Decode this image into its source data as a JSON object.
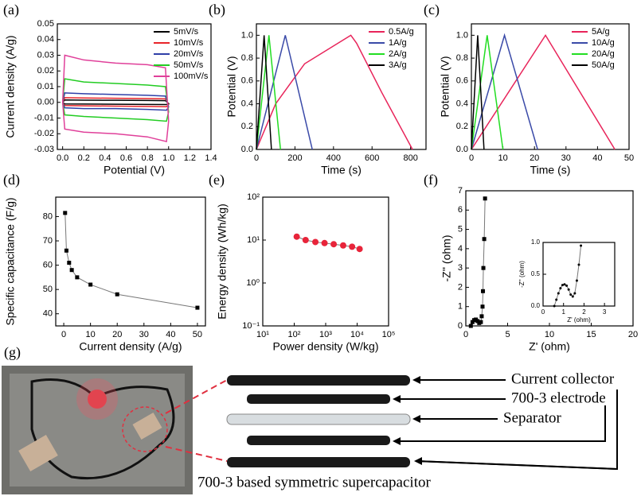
{
  "chart_data": [
    {
      "type": "line",
      "panel_label": "(a)",
      "x_label": "Potential (V)",
      "y_label": "Current density (A/g)",
      "xlim": [
        -0.05,
        1.4
      ],
      "ylim": [
        -0.03,
        0.05
      ],
      "xticks": [
        {
          "value": 0,
          "label": "0.0"
        },
        0.2,
        0.4,
        0.6,
        0.8,
        {
          "value": 1,
          "label": "1.0"
        },
        1.2,
        1.4
      ],
      "yticks": [
        -0.03,
        -0.02,
        -0.01,
        {
          "value": 0,
          "label": "0.00"
        },
        0.01,
        0.02,
        0.03,
        0.04,
        0.05
      ],
      "legend": true,
      "x": [
        0.0,
        0.02,
        0.2,
        0.5,
        0.8,
        0.97,
        1.0,
        0.98,
        0.8,
        0.5,
        0.2,
        0.02,
        0.0
      ],
      "series": [
        {
          "name": "5mV/s",
          "color": "#000000",
          "values": [
            0,
            0.0015,
            0.0014,
            0.0013,
            0.0012,
            0.0011,
            -0.0008,
            -0.0014,
            -0.0013,
            -0.0012,
            -0.0011,
            -0.001,
            0
          ]
        },
        {
          "name": "10mV/s",
          "color": "#e8242a",
          "values": [
            0,
            0.003,
            0.0028,
            0.0026,
            0.0024,
            0.0022,
            -0.0015,
            -0.0028,
            -0.0026,
            -0.0024,
            -0.0022,
            -0.002,
            0
          ]
        },
        {
          "name": "20mV/s",
          "color": "#2f3fa8",
          "values": [
            0,
            0.006,
            0.0055,
            0.005,
            0.0045,
            0.004,
            -0.003,
            -0.005,
            -0.0045,
            -0.004,
            -0.004,
            -0.0035,
            0
          ]
        },
        {
          "name": "50mV/s",
          "color": "#22cc22",
          "values": [
            0,
            0.015,
            0.013,
            0.012,
            0.011,
            0.01,
            -0.006,
            -0.012,
            -0.011,
            -0.01,
            -0.009,
            -0.008,
            0
          ]
        },
        {
          "name": "100mV/s",
          "color": "#e0409a",
          "values": [
            0,
            0.03,
            0.027,
            0.025,
            0.024,
            0.022,
            -0.012,
            -0.025,
            -0.022,
            -0.02,
            -0.019,
            -0.017,
            0
          ]
        }
      ]
    },
    {
      "type": "line",
      "panel_label": "(b)",
      "x_label": "Time (s)",
      "y_label": "Potential (V)",
      "xlim": [
        0,
        880
      ],
      "ylim": [
        0,
        1.1
      ],
      "xticks": [
        0,
        200,
        400,
        600,
        800
      ],
      "yticks": [
        {
          "value": 0,
          "label": "0.0"
        },
        0.2,
        0.4,
        0.6,
        0.8,
        {
          "value": 1,
          "label": "1.0"
        }
      ],
      "legend": true,
      "series": [
        {
          "name": "0.5A/g",
          "color": "#e8245a",
          "x": [
            0,
            100,
            250,
            490,
            520,
            650,
            810
          ],
          "values": [
            0,
            0.4,
            0.75,
            1,
            0.93,
            0.5,
            0
          ]
        },
        {
          "name": "1A/g",
          "color": "#3a4aa8",
          "x": [
            0,
            150,
            290
          ],
          "values": [
            0,
            1,
            0
          ]
        },
        {
          "name": "2A/g",
          "color": "#22dd22",
          "x": [
            0,
            65,
            125
          ],
          "values": [
            0,
            1,
            0
          ]
        },
        {
          "name": "3A/g",
          "color": "#000000",
          "x": [
            0,
            40,
            78
          ],
          "values": [
            0,
            1,
            0
          ]
        }
      ]
    },
    {
      "type": "line",
      "panel_label": "(c)",
      "x_label": "Time (s)",
      "y_label": "Potential (V)",
      "xlim": [
        0,
        50
      ],
      "ylim": [
        0,
        1.1
      ],
      "xticks": [
        0,
        10,
        20,
        30,
        40,
        50
      ],
      "yticks": [
        {
          "value": 0,
          "label": "0.0"
        },
        0.2,
        0.4,
        0.6,
        0.8,
        {
          "value": 1,
          "label": "1.0"
        }
      ],
      "legend": true,
      "series": [
        {
          "name": "5A/g",
          "color": "#e8245a",
          "x": [
            0,
            23.5,
            45.5
          ],
          "values": [
            0,
            1,
            0
          ]
        },
        {
          "name": "10A/g",
          "color": "#3a4aa8",
          "x": [
            0,
            10.5,
            21
          ],
          "values": [
            0,
            1,
            0
          ]
        },
        {
          "name": "20A/g",
          "color": "#22dd22",
          "x": [
            0,
            5,
            10
          ],
          "values": [
            0,
            1,
            0
          ]
        },
        {
          "name": "50A/g",
          "color": "#000000",
          "x": [
            0,
            2,
            4
          ],
          "values": [
            0,
            1,
            0
          ]
        }
      ]
    },
    {
      "type": "line",
      "panel_label": "(d)",
      "x_label": "Current density (A/g)",
      "y_label": "Specific capacitance (F/g)",
      "xlim": [
        -3,
        53
      ],
      "ylim": [
        35,
        88
      ],
      "xticks": [
        0,
        10,
        20,
        30,
        40,
        50
      ],
      "yticks": [
        40,
        50,
        60,
        70,
        80
      ],
      "x": [
        0.5,
        1,
        2,
        3,
        5,
        10,
        20,
        50
      ],
      "series": [
        {
          "color": "#000000",
          "marker": "square",
          "values": [
            81.5,
            66,
            61,
            58,
            55,
            52,
            48,
            42.5
          ]
        }
      ]
    },
    {
      "type": "line",
      "panel_label": "(e)",
      "x_label": "Power density (W/kg)",
      "y_label": "Energy density (Wh/kg)",
      "xscale": "log",
      "yscale": "log",
      "xlim": [
        10,
        100000
      ],
      "ylim": [
        0.1,
        100
      ],
      "xticks": [
        {
          "value": 10,
          "label": "10¹"
        },
        {
          "value": 100,
          "label": "10²"
        },
        {
          "value": 1000,
          "label": "10³"
        },
        {
          "value": 10000,
          "label": "10⁴"
        },
        {
          "value": 100000,
          "label": "10⁵"
        }
      ],
      "yticks": [
        {
          "value": 0.1,
          "label": "10⁻¹"
        },
        {
          "value": 1,
          "label": "10⁰"
        },
        {
          "value": 10,
          "label": "10¹"
        },
        {
          "value": 100,
          "label": "10²"
        }
      ],
      "x": [
        120,
        230,
        470,
        920,
        1800,
        3600,
        6900,
        12000
      ],
      "series": [
        {
          "color": "#e8243a",
          "marker": "circle",
          "values": [
            12,
            10,
            9,
            8.5,
            8,
            7.5,
            7,
            6.2
          ]
        }
      ]
    },
    {
      "type": "line",
      "panel_label": "(f)",
      "x_label": "Z' (ohm)",
      "y_label": "-Z'' (ohm)",
      "xlim": [
        0,
        20
      ],
      "ylim": [
        0,
        7
      ],
      "xticks": [
        0,
        5,
        10,
        15,
        20
      ],
      "yticks": [
        0,
        1,
        2,
        3,
        4,
        5,
        6,
        7
      ],
      "x": [
        0.6,
        0.8,
        1.0,
        1.2,
        1.4,
        1.6,
        1.8,
        1.9,
        2.0,
        2.05,
        2.1,
        2.2,
        2.3
      ],
      "series": [
        {
          "color": "#000000",
          "marker": "square",
          "values": [
            0,
            0.2,
            0.3,
            0.33,
            0.25,
            0.15,
            0.2,
            0.5,
            1.0,
            1.8,
            3,
            4.5,
            6.6
          ]
        }
      ]
    },
    {
      "type": "line",
      "x_label": "Z' (ohm)",
      "y_label": "-Z'' (ohm)",
      "xlim": [
        0,
        3.5
      ],
      "ylim": [
        0,
        1
      ],
      "xticks": [
        0,
        1,
        2,
        3
      ],
      "yticks": [
        {
          "value": 0,
          "label": "0.0"
        },
        0.5,
        {
          "value": 1,
          "label": "1.0"
        }
      ],
      "x": [
        0.55,
        0.65,
        0.75,
        0.85,
        0.95,
        1.05,
        1.15,
        1.25,
        1.35,
        1.45,
        1.55,
        1.65,
        1.75,
        1.85
      ],
      "series": [
        {
          "color": "#000000",
          "marker": "circle",
          "values": [
            0.0,
            0.1,
            0.2,
            0.28,
            0.33,
            0.34,
            0.32,
            0.26,
            0.18,
            0.15,
            0.2,
            0.4,
            0.65,
            0.95
          ]
        }
      ]
    }
  ],
  "diagram": {
    "panel_label": "(g)",
    "labels": [
      "Current collector",
      "700-3 electrode",
      "Separator"
    ],
    "caption": "700-3 based symmetric supercapacitor"
  }
}
